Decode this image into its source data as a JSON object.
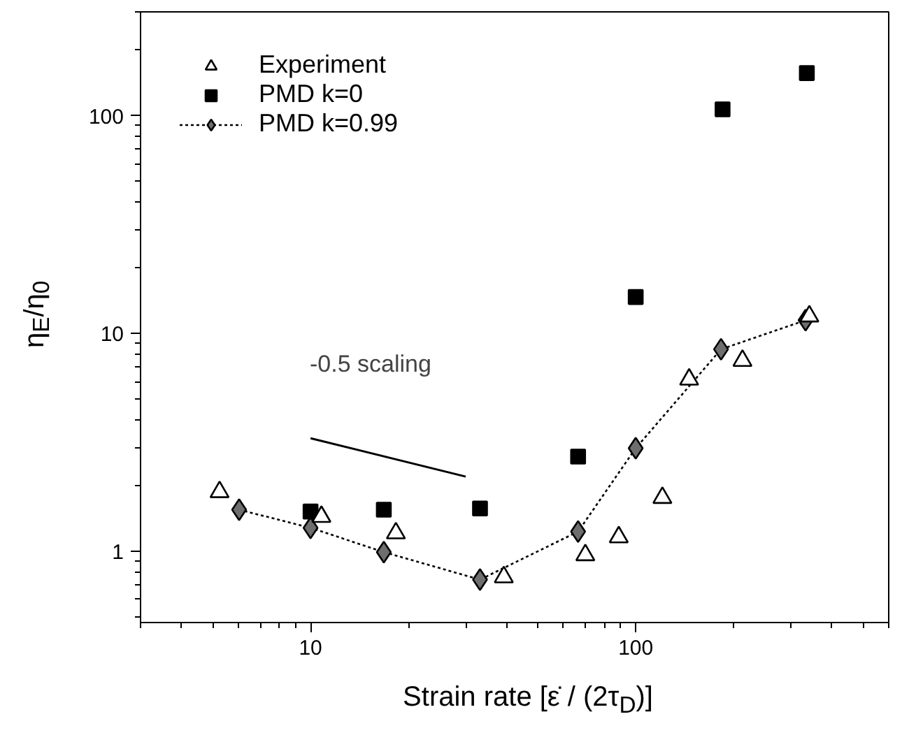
{
  "chart_data": {
    "type": "scatter",
    "xlabel": "Strain rate [ε̇ / (2τ$_{D}$)]",
    "ylabel": "η$_{E}$/η$_{0}$",
    "log": "xy",
    "xlim": [
      3,
      600
    ],
    "ylim": [
      0.47,
      300
    ],
    "xticks": [
      10,
      100
    ],
    "yticks": [
      1,
      10,
      100
    ],
    "grid": false,
    "legend": "top left",
    "series": [
      {
        "name": "Experiment",
        "marker": "triangle",
        "color": "#000000",
        "x": [
          5.25,
          10.8,
          18.3,
          39.3,
          70,
          88.7,
          120.8,
          146,
          213,
          342
        ],
        "values": [
          1.87,
          1.44,
          1.21,
          0.76,
          0.96,
          1.16,
          1.76,
          6.15,
          7.5,
          12.0
        ]
      },
      {
        "name": "PMD k=0",
        "marker": "square",
        "color": "#000000",
        "x": [
          10,
          16.8,
          33.2,
          66.5,
          100,
          185,
          336
        ],
        "values": [
          1.52,
          1.55,
          1.57,
          2.72,
          14.7,
          107,
          157
        ]
      },
      {
        "name": "PMD k=0.99",
        "type": "line",
        "marker": "diamond",
        "line_style": "dotted",
        "color": "#6e6e6e",
        "x": [
          6.03,
          10,
          16.8,
          33.2,
          66.5,
          100,
          183,
          333
        ],
        "values": [
          1.55,
          1.28,
          0.99,
          0.74,
          1.23,
          2.97,
          8.46,
          11.5
        ]
      },
      {
        "type": "line",
        "marker": "none",
        "line_style": "solid",
        "color": "#000000",
        "x": [
          10,
          30
        ],
        "values": [
          3.3,
          2.2
        ]
      }
    ],
    "annotations": [
      "-0.5 scaling"
    ]
  }
}
